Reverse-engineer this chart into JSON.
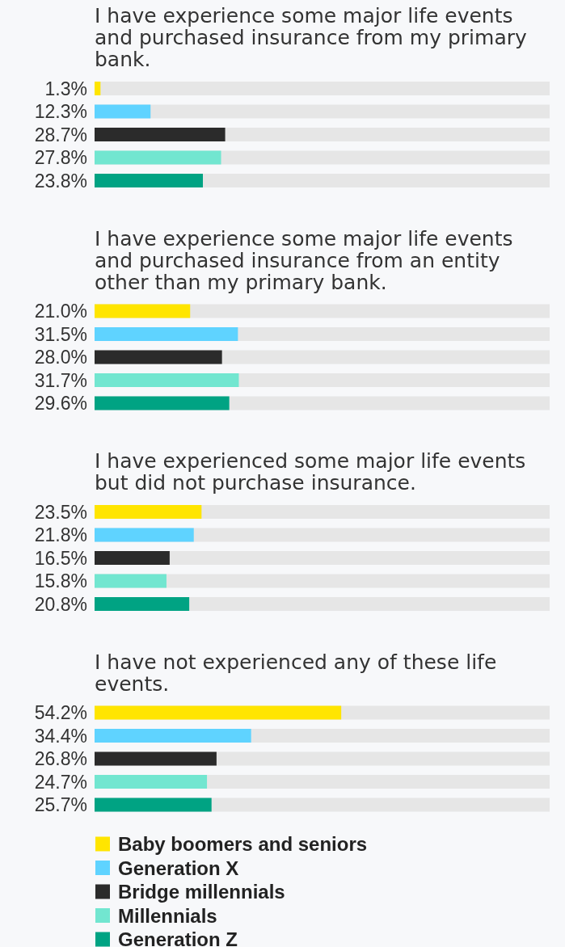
{
  "chart_data": [
    {
      "type": "bar",
      "orientation": "horizontal",
      "stacked": true,
      "title": "I have experience some major life events and purchased insurance from my primary bank.",
      "categories": [
        null,
        null,
        null,
        null,
        null
      ],
      "xlim": [
        0,
        100
      ],
      "tick_labels": false,
      "legend": false,
      "series": [
        {
          "color": "#ffe500",
          "values": [
            1.3,
            null,
            null,
            null,
            null
          ],
          "value_labels": [
            "1.3%",
            null,
            null,
            null,
            null
          ]
        },
        {
          "color": "#5fd3ff",
          "values": [
            null,
            12.3,
            null,
            null,
            null
          ],
          "value_labels": [
            null,
            "12.3%",
            null,
            null,
            null
          ]
        },
        {
          "color": "#2b2b2b",
          "values": [
            null,
            null,
            28.7,
            null,
            null
          ],
          "value_labels": [
            null,
            null,
            "28.7%",
            null,
            null
          ]
        },
        {
          "color": "#72e6d0",
          "values": [
            null,
            null,
            null,
            27.8,
            null
          ],
          "value_labels": [
            null,
            null,
            null,
            "27.8%",
            null
          ]
        },
        {
          "color": "#00a383",
          "values": [
            null,
            null,
            null,
            null,
            23.8
          ],
          "value_labels": [
            null,
            null,
            null,
            null,
            "23.8%"
          ]
        }
      ]
    },
    {
      "type": "bar",
      "orientation": "horizontal",
      "stacked": true,
      "title": "I have experience some major life events and purchased insurance from an entity other than my primary bank.",
      "categories": [
        null,
        null,
        null,
        null,
        null
      ],
      "xlim": [
        0,
        100
      ],
      "tick_labels": false,
      "legend": false,
      "series": [
        {
          "color": "#ffe500",
          "values": [
            21.0,
            null,
            null,
            null,
            null
          ],
          "value_labels": [
            "21.0%",
            null,
            null,
            null,
            null
          ]
        },
        {
          "color": "#5fd3ff",
          "values": [
            null,
            31.5,
            null,
            null,
            null
          ],
          "value_labels": [
            null,
            "31.5%",
            null,
            null,
            null
          ]
        },
        {
          "color": "#2b2b2b",
          "values": [
            null,
            null,
            28.0,
            null,
            null
          ],
          "value_labels": [
            null,
            null,
            "28.0%",
            null,
            null
          ]
        },
        {
          "color": "#72e6d0",
          "values": [
            null,
            null,
            null,
            31.7,
            null
          ],
          "value_labels": [
            null,
            null,
            null,
            "31.7%",
            null
          ]
        },
        {
          "color": "#00a383",
          "values": [
            null,
            null,
            null,
            null,
            29.6
          ],
          "value_labels": [
            null,
            null,
            null,
            null,
            "29.6%"
          ]
        }
      ]
    },
    {
      "type": "bar",
      "orientation": "horizontal",
      "stacked": true,
      "title": "I have experienced some major life events but did not purchase insurance.",
      "categories": [
        null,
        null,
        null,
        null,
        null
      ],
      "xlim": [
        0,
        100
      ],
      "tick_labels": false,
      "legend": false,
      "series": [
        {
          "color": "#ffe500",
          "values": [
            23.5,
            null,
            null,
            null,
            null
          ],
          "value_labels": [
            "23.5%",
            null,
            null,
            null,
            null
          ]
        },
        {
          "color": "#5fd3ff",
          "values": [
            null,
            21.8,
            null,
            null,
            null
          ],
          "value_labels": [
            null,
            "21.8%",
            null,
            null,
            null
          ]
        },
        {
          "color": "#2b2b2b",
          "values": [
            null,
            null,
            16.5,
            null,
            null
          ],
          "value_labels": [
            null,
            null,
            "16.5%",
            null,
            null
          ]
        },
        {
          "color": "#72e6d0",
          "values": [
            null,
            null,
            null,
            15.8,
            null
          ],
          "value_labels": [
            null,
            null,
            null,
            "15.8%",
            null
          ]
        },
        {
          "color": "#00a383",
          "values": [
            null,
            null,
            null,
            null,
            20.8
          ],
          "value_labels": [
            null,
            null,
            null,
            null,
            "20.8%"
          ]
        }
      ]
    },
    {
      "type": "bar",
      "orientation": "horizontal",
      "stacked": true,
      "title": "I have not experienced any of these life events.",
      "categories": [
        null,
        null,
        null,
        null,
        null
      ],
      "xlim": [
        0,
        100
      ],
      "tick_labels": false,
      "legend": "bottom",
      "series": [
        {
          "name": "Baby boomers and seniors",
          "color": "#ffe500",
          "values": [
            54.2,
            null,
            null,
            null,
            null
          ],
          "value_labels": [
            "54.2%",
            null,
            null,
            null,
            null
          ]
        },
        {
          "name": "Generation X",
          "color": "#5fd3ff",
          "values": [
            null,
            34.4,
            null,
            null,
            null
          ],
          "value_labels": [
            null,
            "34.4%",
            null,
            null,
            null
          ]
        },
        {
          "name": "Bridge millennials",
          "color": "#2b2b2b",
          "values": [
            null,
            null,
            26.8,
            null,
            null
          ],
          "value_labels": [
            null,
            null,
            "26.8%",
            null,
            null
          ]
        },
        {
          "name": "Millennials",
          "color": "#72e6d0",
          "values": [
            null,
            null,
            null,
            24.7,
            null
          ],
          "value_labels": [
            null,
            null,
            null,
            "24.7%",
            null
          ]
        },
        {
          "name": "Generation Z",
          "color": "#00a383",
          "values": [
            null,
            null,
            null,
            null,
            25.7
          ],
          "value_labels": [
            null,
            null,
            null,
            null,
            "25.7%"
          ]
        }
      ]
    }
  ]
}
